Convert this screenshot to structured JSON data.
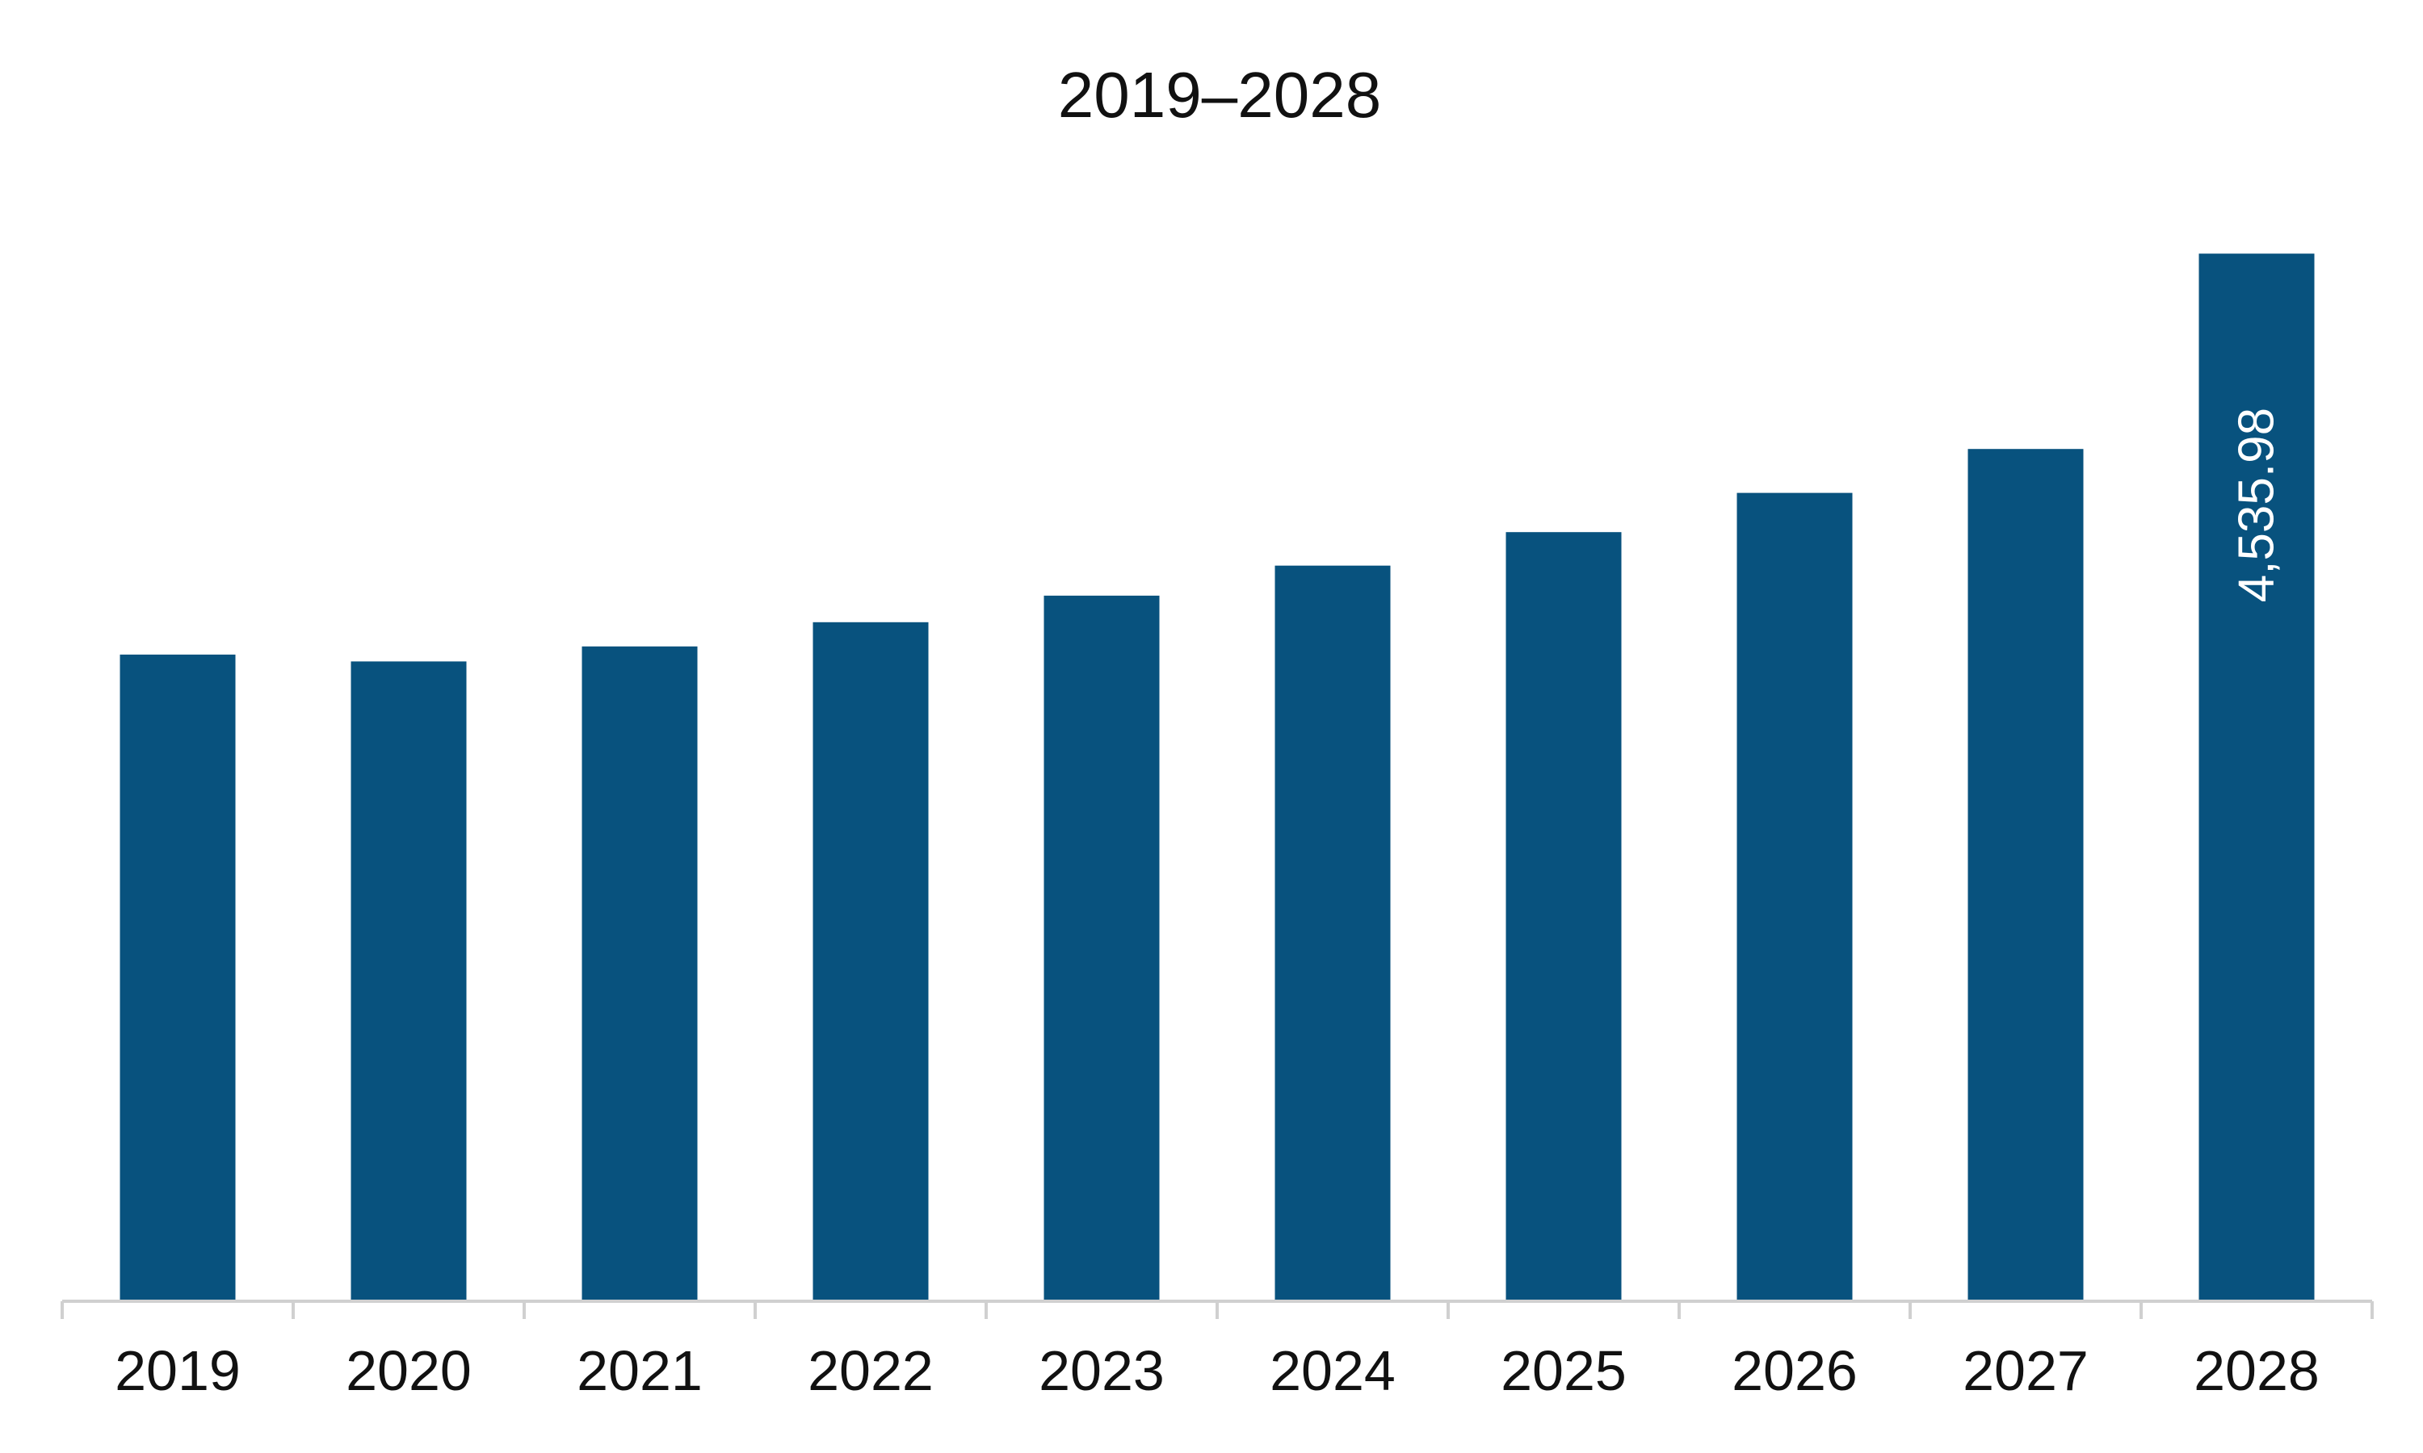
{
  "chart_data": {
    "type": "bar",
    "title": "2019–2028",
    "xlabel": "",
    "ylabel": "",
    "categories": [
      "2019",
      "2020",
      "2021",
      "2022",
      "2023",
      "2024",
      "2025",
      "2026",
      "2027",
      "2028"
    ],
    "series": [
      {
        "values": [
          2800,
          2770,
          2835,
          2940,
          3055,
          3185,
          3330,
          3500,
          3690,
          4535.98
        ]
      }
    ],
    "data_labels": [
      {
        "category": "2028",
        "text": "4,535.98"
      }
    ],
    "ylim": [
      0,
      4900
    ],
    "grid": false,
    "legend": "none",
    "colors": {
      "bar": "#08527E",
      "axis": "#D0D0D0",
      "text": "#111111",
      "data_label": "#FFFFFF"
    }
  }
}
